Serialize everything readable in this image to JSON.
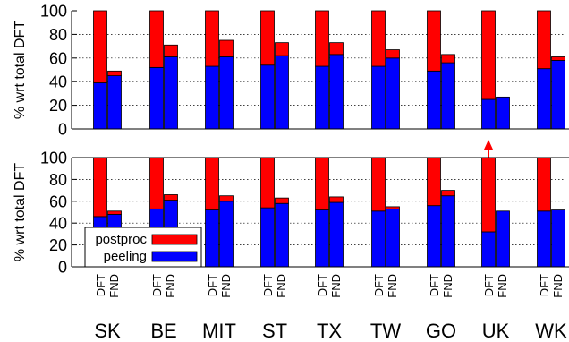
{
  "chart_data": [
    {
      "type": "bar",
      "stacked": true,
      "ylabel": "% wrt total DFT",
      "ylim": [
        0,
        100
      ],
      "yticks": [
        "0",
        "20",
        "40",
        "60",
        "80",
        "100"
      ],
      "grid": true,
      "categories": [
        "SK",
        "BE",
        "MIT",
        "ST",
        "TX",
        "TW",
        "GO",
        "UK",
        "WK"
      ],
      "bar_labels": [
        "DFT",
        "FND"
      ],
      "series": [
        {
          "name": "peeling",
          "color": "#0000ff",
          "values": {
            "DFT": [
              39,
              52,
              53,
              54,
              53,
              53,
              49,
              25,
              51
            ],
            "FND": [
              45,
              61,
              61,
              62,
              63,
              60,
              56,
              27,
              58
            ]
          }
        },
        {
          "name": "postproc",
          "color": "#ff0000",
          "values": {
            "DFT": [
              61,
              48,
              47,
              46,
              47,
              47,
              51,
              75,
              49
            ],
            "FND": [
              4,
              10,
              14,
              11,
              10,
              7,
              7,
              0,
              3
            ]
          }
        }
      ]
    },
    {
      "type": "bar",
      "stacked": true,
      "ylabel": "% wrt total DFT",
      "ylim": [
        0,
        100
      ],
      "yticks": [
        "0",
        "20",
        "40",
        "60",
        "80",
        "100"
      ],
      "grid": true,
      "categories": [
        "SK",
        "BE",
        "MIT",
        "ST",
        "TX",
        "TW",
        "GO",
        "UK",
        "WK"
      ],
      "bar_labels": [
        "DFT",
        "FND"
      ],
      "legend_position": "bottom-left",
      "series": [
        {
          "name": "peeling",
          "color": "#0000ff",
          "values": {
            "DFT": [
              46,
              53,
              52,
              54,
              52,
              51,
              56,
              32,
              51
            ],
            "FND": [
              48,
              61,
              60,
              58,
              59,
              53,
              65,
              51,
              52
            ]
          }
        },
        {
          "name": "postproc",
          "color": "#ff0000",
          "values": {
            "DFT": [
              54,
              47,
              48,
              46,
              48,
              49,
              44,
              68,
              49
            ],
            "FND": [
              3,
              5,
              5,
              5,
              5,
              2,
              5,
              0,
              0
            ]
          }
        }
      ],
      "annotations": [
        {
          "type": "arrow",
          "category": "UK",
          "bar": "DFT",
          "direction": "up",
          "color": "#ff0000"
        }
      ]
    }
  ]
}
